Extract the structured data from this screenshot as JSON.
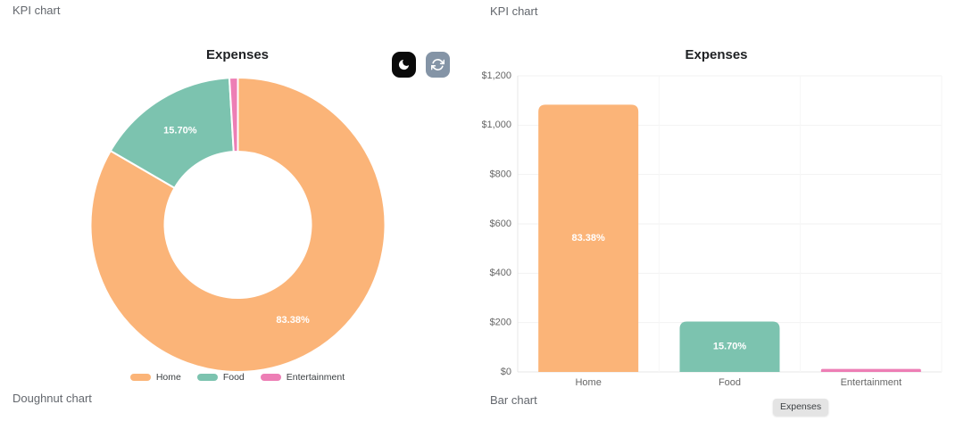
{
  "left_panel": {
    "header": "KPI chart",
    "caption": "Doughnut chart"
  },
  "right_panel": {
    "header": "KPI chart",
    "caption": "Bar chart",
    "badge_label": "Expenses"
  },
  "toolbar": {
    "dark_mode_icon": "moon-icon",
    "refresh_icon": "refresh-icon",
    "dark_button_bg": "#0a0a0a",
    "refresh_button_bg": "#8494a6",
    "icon_color": "#ffffff"
  },
  "colors": {
    "home": "#fbb478",
    "food": "#7cc3af",
    "entertainment": "#ed7eb5",
    "slice_border": "#ffffff",
    "grid_line": "#f2f2f2",
    "axis_border": "#e7e7e7",
    "tick_text": "#666666",
    "on_bar_label": "#ffffff"
  },
  "chart_data": [
    {
      "type": "pie",
      "variant": "doughnut",
      "title": "Expenses",
      "categories": [
        "Home",
        "Food",
        "Entertainment"
      ],
      "values": [
        1083,
        204,
        12
      ],
      "percentages": [
        83.38,
        15.7,
        0.92
      ],
      "slice_labels": [
        "83.38%",
        "15.70%",
        null
      ],
      "colors": [
        "#fbb478",
        "#7cc3af",
        "#ed7eb5"
      ],
      "legend_position": "bottom"
    },
    {
      "type": "bar",
      "title": "Expenses",
      "categories": [
        "Home",
        "Food",
        "Entertainment"
      ],
      "values": [
        1083,
        204,
        12
      ],
      "bar_labels": [
        "83.38%",
        "15.70%",
        null
      ],
      "colors": [
        "#fbb478",
        "#7cc3af",
        "#ed7eb5"
      ],
      "ylim": [
        0,
        1200
      ],
      "ytick_labels": [
        "$0",
        "$200",
        "$400",
        "$600",
        "$800",
        "$1,000",
        "$1,200"
      ],
      "grid": true,
      "legend_position": "none"
    }
  ]
}
